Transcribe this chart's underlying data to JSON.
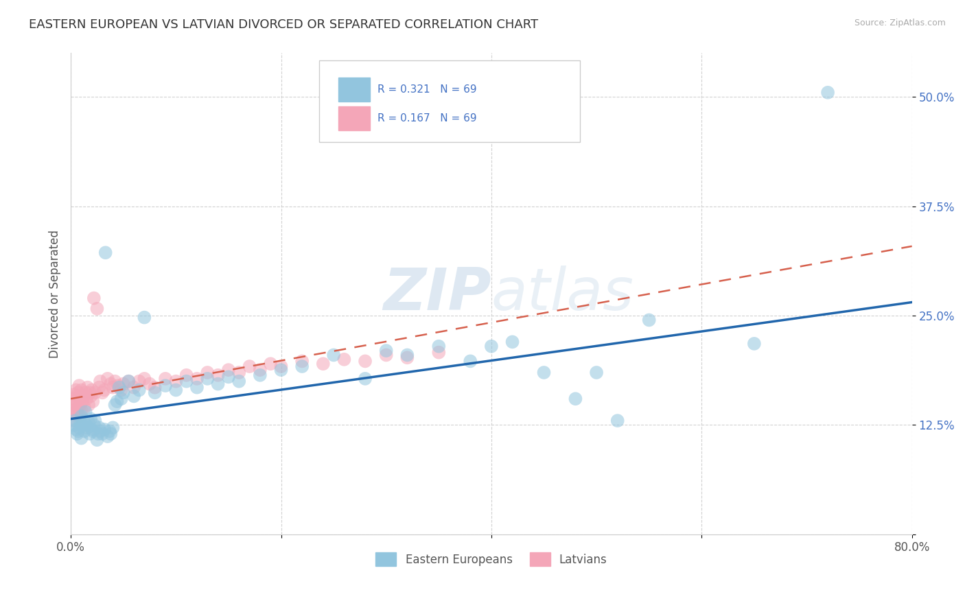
{
  "title": "EASTERN EUROPEAN VS LATVIAN DIVORCED OR SEPARATED CORRELATION CHART",
  "source": "Source: ZipAtlas.com",
  "ylabel": "Divorced or Separated",
  "blue_color": "#92c5de",
  "pink_color": "#f4a6b8",
  "trend_blue_color": "#2166ac",
  "trend_pink_color": "#d6604d",
  "watermark": "ZIPatlas",
  "xmin": 0.0,
  "xmax": 0.8,
  "ymin": 0.0,
  "ymax": 0.55,
  "blue_scatter_x": [
    0.003,
    0.004,
    0.005,
    0.006,
    0.007,
    0.008,
    0.009,
    0.01,
    0.01,
    0.011,
    0.012,
    0.013,
    0.014,
    0.015,
    0.016,
    0.017,
    0.018,
    0.019,
    0.02,
    0.021,
    0.022,
    0.023,
    0.025,
    0.026,
    0.027,
    0.028,
    0.03,
    0.032,
    0.033,
    0.035,
    0.037,
    0.038,
    0.04,
    0.042,
    0.044,
    0.046,
    0.048,
    0.05,
    0.055,
    0.06,
    0.065,
    0.07,
    0.08,
    0.09,
    0.1,
    0.11,
    0.12,
    0.13,
    0.14,
    0.15,
    0.16,
    0.18,
    0.2,
    0.22,
    0.25,
    0.28,
    0.3,
    0.32,
    0.35,
    0.38,
    0.4,
    0.42,
    0.45,
    0.48,
    0.5,
    0.52,
    0.55,
    0.65,
    0.72
  ],
  "blue_scatter_y": [
    0.125,
    0.13,
    0.12,
    0.115,
    0.118,
    0.122,
    0.128,
    0.11,
    0.135,
    0.125,
    0.13,
    0.118,
    0.14,
    0.125,
    0.122,
    0.128,
    0.115,
    0.132,
    0.12,
    0.118,
    0.125,
    0.13,
    0.108,
    0.115,
    0.122,
    0.118,
    0.115,
    0.12,
    0.322,
    0.112,
    0.118,
    0.115,
    0.122,
    0.148,
    0.152,
    0.168,
    0.155,
    0.162,
    0.175,
    0.158,
    0.165,
    0.248,
    0.162,
    0.17,
    0.165,
    0.175,
    0.168,
    0.178,
    0.172,
    0.18,
    0.175,
    0.182,
    0.188,
    0.192,
    0.205,
    0.178,
    0.21,
    0.205,
    0.215,
    0.198,
    0.215,
    0.22,
    0.185,
    0.155,
    0.185,
    0.13,
    0.245,
    0.218,
    0.505
  ],
  "pink_scatter_x": [
    0.001,
    0.002,
    0.002,
    0.003,
    0.003,
    0.004,
    0.004,
    0.005,
    0.005,
    0.006,
    0.006,
    0.007,
    0.007,
    0.008,
    0.008,
    0.009,
    0.009,
    0.01,
    0.01,
    0.011,
    0.012,
    0.013,
    0.014,
    0.015,
    0.016,
    0.017,
    0.018,
    0.019,
    0.02,
    0.021,
    0.022,
    0.023,
    0.025,
    0.027,
    0.028,
    0.03,
    0.032,
    0.035,
    0.038,
    0.04,
    0.042,
    0.045,
    0.048,
    0.05,
    0.055,
    0.06,
    0.065,
    0.07,
    0.075,
    0.08,
    0.09,
    0.1,
    0.11,
    0.12,
    0.13,
    0.14,
    0.15,
    0.16,
    0.17,
    0.18,
    0.19,
    0.2,
    0.22,
    0.24,
    0.26,
    0.28,
    0.3,
    0.32,
    0.35
  ],
  "pink_scatter_y": [
    0.13,
    0.145,
    0.152,
    0.138,
    0.16,
    0.142,
    0.155,
    0.148,
    0.165,
    0.14,
    0.158,
    0.145,
    0.162,
    0.135,
    0.17,
    0.148,
    0.158,
    0.142,
    0.165,
    0.152,
    0.158,
    0.145,
    0.162,
    0.155,
    0.168,
    0.148,
    0.162,
    0.158,
    0.165,
    0.152,
    0.27,
    0.162,
    0.258,
    0.168,
    0.175,
    0.162,
    0.165,
    0.178,
    0.172,
    0.168,
    0.175,
    0.17,
    0.165,
    0.172,
    0.175,
    0.168,
    0.175,
    0.178,
    0.172,
    0.168,
    0.178,
    0.175,
    0.182,
    0.178,
    0.185,
    0.182,
    0.188,
    0.185,
    0.192,
    0.188,
    0.195,
    0.192,
    0.198,
    0.195,
    0.2,
    0.198,
    0.205,
    0.202,
    0.208
  ],
  "blue_trend_x0": 0.0,
  "blue_trend_y0": 0.132,
  "blue_trend_x1": 0.78,
  "blue_trend_y1": 0.262,
  "pink_trend_x0": 0.0,
  "pink_trend_y0": 0.155,
  "pink_trend_x1": 0.78,
  "pink_trend_y1": 0.325
}
